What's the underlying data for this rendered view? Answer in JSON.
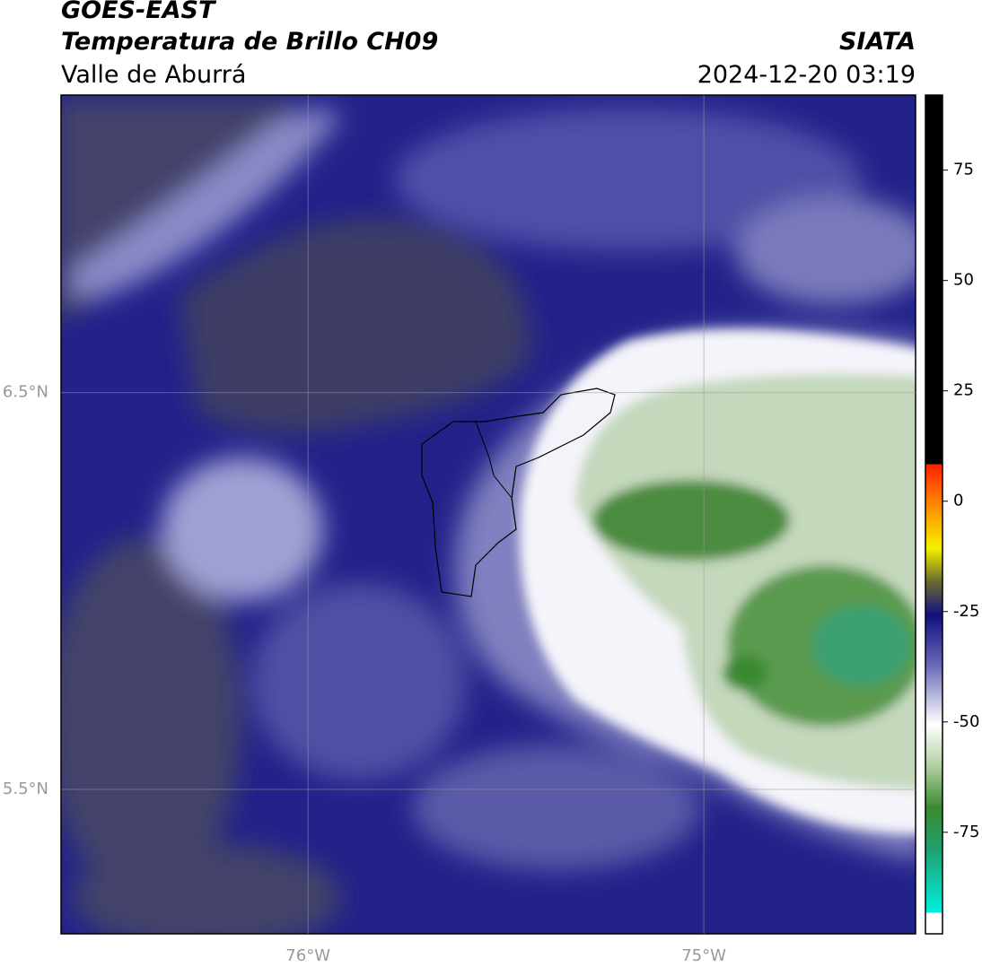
{
  "header": {
    "title": "GOES-EAST",
    "subtitle": "Temperatura de Brillo CH09",
    "region": "Valle de Aburrá",
    "source": "SIATA",
    "datetime": "2024-12-20 03:19"
  },
  "map": {
    "xlim": [
      -76.624,
      -74.465
    ],
    "ylim": [
      5.136,
      7.25
    ],
    "xticks": [
      {
        "value": -76,
        "label": "76°W"
      },
      {
        "value": -75,
        "label": "75°W"
      }
    ],
    "yticks": [
      {
        "value": 6.5,
        "label": "6.5°N"
      },
      {
        "value": 5.5,
        "label": "5.5°N"
      }
    ]
  },
  "colorbar": {
    "ylim": [
      -98,
      92
    ],
    "yticks": [
      75,
      50,
      25,
      0,
      -25,
      -50,
      -75
    ]
  }
}
